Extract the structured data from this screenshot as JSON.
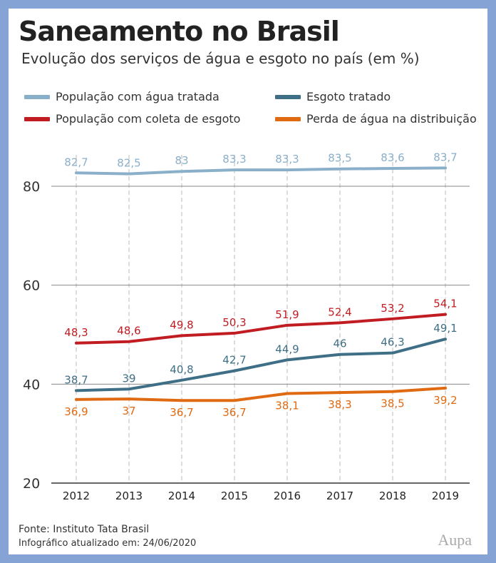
{
  "title": "Saneamento no Brasil",
  "subtitle": "Evolução dos serviços de água e esgoto no país (em %)",
  "footer": {
    "source": "Fonte: Instituto Tata Brasil",
    "updated": "Infográfico atualizado em: 24/06/2020"
  },
  "logo": "Aupa",
  "chart_data": {
    "type": "line",
    "x": [
      "2012",
      "2013",
      "2014",
      "2015",
      "2016",
      "2017",
      "2018",
      "2019"
    ],
    "ylim": [
      20,
      85
    ],
    "yticks": [
      "20",
      "40",
      "60",
      "80"
    ],
    "grid": true,
    "legend_position": "top",
    "series": [
      {
        "name": "População com água tratada",
        "color": "#8aafc9",
        "values": [
          82.7,
          82.5,
          83,
          83.3,
          83.3,
          83.5,
          83.6,
          83.7
        ],
        "labels": [
          "82,7",
          "82,5",
          "83",
          "83,3",
          "83,3",
          "83,5",
          "83,6",
          "83,7"
        ]
      },
      {
        "name": "Esgoto tratado",
        "color": "#3f6f86",
        "values": [
          38.7,
          39,
          40.8,
          42.7,
          44.9,
          46,
          46.3,
          49.1
        ],
        "labels": [
          "38,7",
          "39",
          "40,8",
          "42,7",
          "44,9",
          "46",
          "46,3",
          "49,1"
        ]
      },
      {
        "name": "População com coleta de esgoto",
        "color": "#c01c22",
        "values": [
          48.3,
          48.6,
          49.8,
          50.3,
          51.9,
          52.4,
          53.2,
          54.1
        ],
        "labels": [
          "48,3",
          "48,6",
          "49,8",
          "50,3",
          "51,9",
          "52,4",
          "53,2",
          "54,1"
        ]
      },
      {
        "name": "Perda de água na distribuição",
        "color": "#e06a12",
        "values": [
          36.9,
          37,
          36.7,
          36.7,
          38.1,
          38.3,
          38.5,
          39.2
        ],
        "labels": [
          "36,9",
          "37",
          "36,7",
          "36,7",
          "38,1",
          "38,3",
          "38,5",
          "39,2"
        ]
      }
    ]
  }
}
